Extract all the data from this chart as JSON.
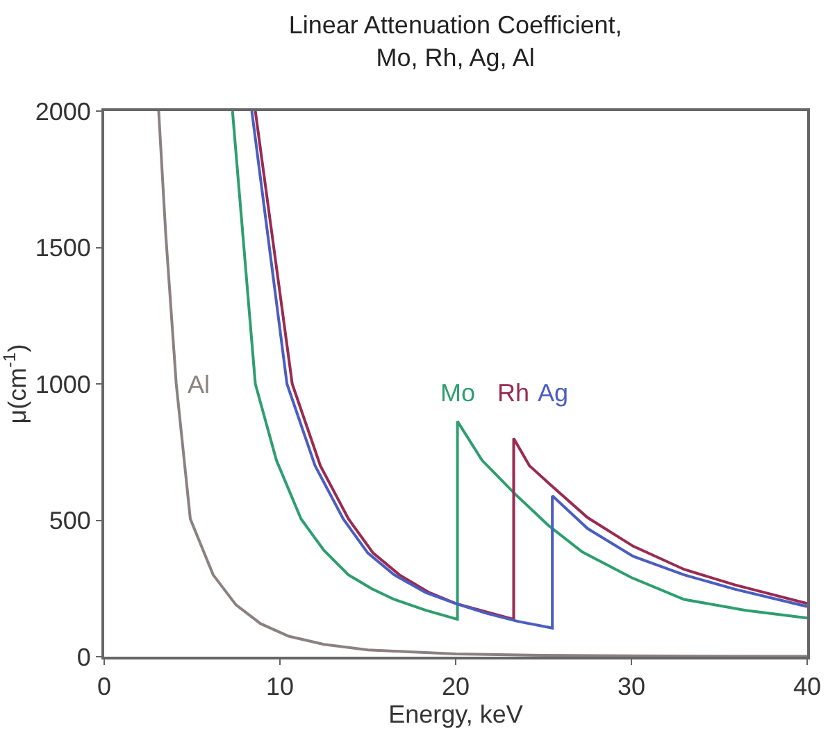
{
  "chart_data": {
    "type": "line",
    "title": "Linear Attenuation Coefficient,\nMo, Rh, Ag, Al",
    "xlabel": "Energy, keV",
    "ylabel": "μ(cm$^{-1}$)",
    "xlim": [
      0,
      40
    ],
    "ylim": [
      0,
      2000
    ],
    "xticks": [
      0,
      10,
      20,
      30,
      40
    ],
    "yticks": [
      0,
      500,
      1000,
      1500,
      2000
    ],
    "grid": false,
    "legend": false,
    "marker": "none",
    "line_style": "solid",
    "series": [
      {
        "name": "Al",
        "color": "#8c8080",
        "x": [
          3.1,
          3.5,
          4.1,
          4.9,
          6.2,
          7.5,
          8.9,
          10.5,
          12.5,
          15,
          20,
          25,
          30,
          40
        ],
        "values": [
          2000,
          1550,
          1000,
          505,
          300,
          190,
          121,
          75,
          45,
          25,
          10,
          5,
          3,
          1
        ]
      },
      {
        "name": "Mo",
        "color": "#2e9e6e",
        "x": [
          7.3,
          8.6,
          9.8,
          11.2,
          12.5,
          13.9,
          15.2,
          16.5,
          18.3,
          20.1,
          20.1,
          21.5,
          23.4,
          25.3,
          27.2,
          30,
          33,
          36.5,
          40
        ],
        "values": [
          2000,
          1000,
          720,
          505,
          390,
          300,
          250,
          210,
          170,
          137,
          863,
          720,
          595,
          480,
          384,
          290,
          210,
          170,
          142
        ]
      },
      {
        "name": "Rh",
        "color": "#9a2a50",
        "x": [
          8.6,
          10.7,
          12.3,
          13.9,
          15.3,
          16.8,
          18.5,
          20,
          21.7,
          23.3,
          23.3,
          24.2,
          25.4,
          27.5,
          30.1,
          33,
          35.9,
          40
        ],
        "values": [
          2000,
          1000,
          700,
          505,
          380,
          300,
          235,
          195,
          165,
          137,
          800,
          700,
          630,
          510,
          405,
          320,
          263,
          195
        ]
      },
      {
        "name": "Ag",
        "color": "#4a5ec0",
        "x": [
          8.4,
          10.4,
          12,
          13.6,
          15,
          16.5,
          18.3,
          20,
          21.7,
          23.5,
          25.5,
          25.5,
          27.5,
          30.1,
          33,
          35.9,
          40
        ],
        "values": [
          2000,
          1000,
          700,
          505,
          380,
          300,
          235,
          195,
          160,
          130,
          105,
          590,
          470,
          368,
          300,
          247,
          184
        ]
      }
    ]
  }
}
